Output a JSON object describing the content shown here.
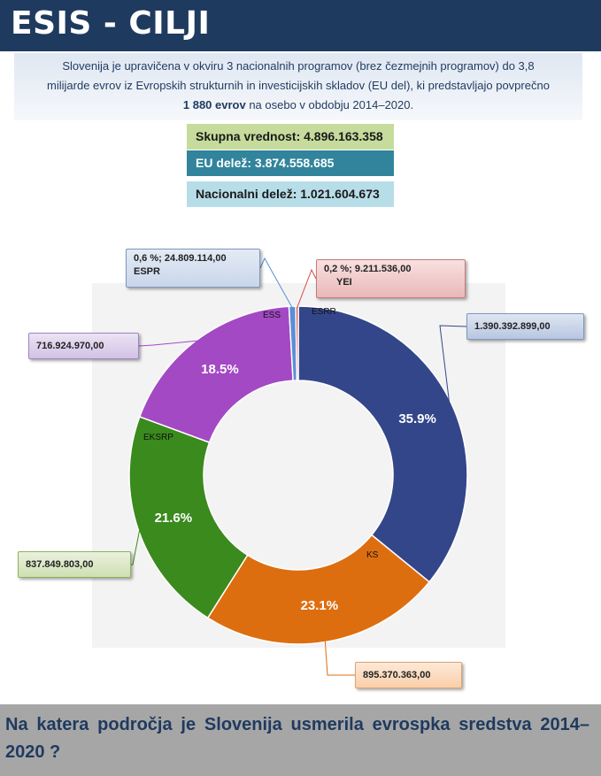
{
  "header": {
    "title": "ESIS - CILJI"
  },
  "intro": {
    "line1": "Slovenija je upravičena v okviru 3 nacionalnih programov (brez čezmejnih programov) do 3,8",
    "line2": "milijarde evrov iz Evropskih strukturnih in investicijskih skladov (EU del), ki predstavljajo povprečno",
    "line3_bold": "1 880 evrov",
    "line3_rest": " na osebo v obdobju 2014–2020."
  },
  "totals": {
    "total": "Skupna vrednost: 4.896.163.358",
    "eu": "EU delež: 3.874.558.685",
    "national": "Nacionalni delež:  1.021.604.673"
  },
  "chart_data": {
    "type": "pie",
    "variant": "donut",
    "slices": [
      {
        "label": "ESRR",
        "value": 1390392899.0,
        "percent_label": "35.9%",
        "value_label": "1.390.392.899,00",
        "color": "#34468a"
      },
      {
        "label": "KS",
        "value": 895370363.0,
        "percent_label": "23.1%",
        "value_label": "895.370.363,00",
        "color": "#dd6e0f"
      },
      {
        "label": "EKSRP",
        "value": 837849803.0,
        "percent_label": "21.6%",
        "value_label": "837.849.803,00",
        "color": "#3a8a1d"
      },
      {
        "label": "ESS",
        "value": 716924970.0,
        "percent_label": "18.5%",
        "value_label": "716.924.970,00",
        "color": "#a349c4"
      },
      {
        "label": "ESPR",
        "value": 24809114.0,
        "percent_label": "",
        "value_label": "0,6 %; 24.809.114,00",
        "color": "#5b8fd6"
      },
      {
        "label": "YEI",
        "value": 9211536.0,
        "percent_label": "",
        "value_label": "0,2 %;  9.211.536,00",
        "color": "#d64a4a"
      }
    ]
  },
  "question": {
    "text": "Na katera področja je Slovenija usmerila evrospka sredstva 2014–2020 ?"
  }
}
